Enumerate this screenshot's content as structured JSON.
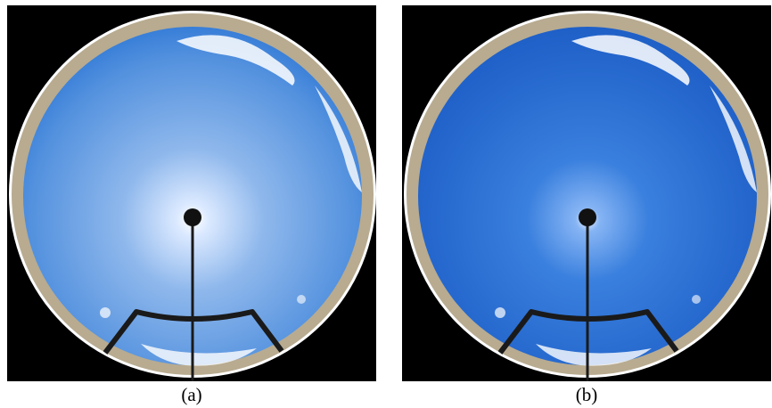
{
  "panels": [
    {
      "label": "(a)",
      "sky_center": "#bcd8ff",
      "sky_mid": "#6ca2e6",
      "sky_edge": "#2f78d6",
      "sun_glow": "#ffffff"
    },
    {
      "label": "(b)",
      "sky_center": "#86b4f4",
      "sky_mid": "#2c72d4",
      "sky_edge": "#1d5ec6",
      "sun_glow": "#e8f1ff"
    }
  ],
  "colors": {
    "background": "#000000",
    "rim": "#ffffff",
    "ground": "#b8ab90",
    "cloud": "#ffffff",
    "frame": "#1a1a1a"
  }
}
